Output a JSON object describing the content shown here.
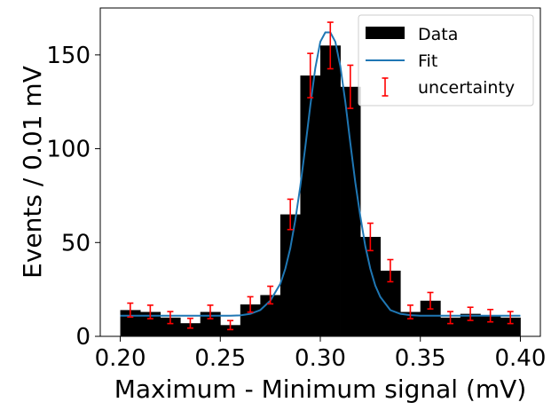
{
  "chart_data": {
    "type": "bar",
    "xlabel": "Maximum - Minimum signal (mV)",
    "ylabel": "Events / 0.01 mV",
    "xlim": [
      0.19,
      0.41
    ],
    "ylim": [
      0,
      175
    ],
    "x_ticks": [
      "0.20",
      "0.25",
      "0.30",
      "0.35",
      "0.40"
    ],
    "x_tick_values": [
      0.2,
      0.25,
      0.3,
      0.35,
      0.4
    ],
    "y_ticks": [
      "0",
      "50",
      "100",
      "150"
    ],
    "y_tick_values": [
      0,
      50,
      100,
      150
    ],
    "bin_width": 0.01,
    "bin_centers": [
      0.205,
      0.215,
      0.225,
      0.235,
      0.245,
      0.255,
      0.265,
      0.275,
      0.285,
      0.295,
      0.305,
      0.315,
      0.325,
      0.335,
      0.345,
      0.355,
      0.365,
      0.375,
      0.385,
      0.395
    ],
    "counts": [
      14,
      13,
      10,
      7,
      13,
      6,
      17,
      22,
      65,
      139,
      155,
      133,
      53,
      35,
      13,
      19,
      10,
      12,
      11,
      10
    ],
    "uncertainty": [
      3.7,
      3.6,
      3.2,
      2.6,
      3.6,
      2.4,
      4.1,
      4.7,
      8.1,
      11.8,
      12.4,
      11.5,
      7.3,
      5.9,
      3.6,
      4.4,
      3.2,
      3.5,
      3.3,
      3.2
    ],
    "fit": {
      "x": [
        0.2,
        0.205,
        0.21,
        0.215,
        0.22,
        0.225,
        0.23,
        0.235,
        0.24,
        0.245,
        0.25,
        0.255,
        0.26,
        0.265,
        0.27,
        0.275,
        0.28,
        0.2825,
        0.285,
        0.2875,
        0.29,
        0.2925,
        0.295,
        0.2975,
        0.3,
        0.3025,
        0.305,
        0.3075,
        0.31,
        0.3125,
        0.315,
        0.3175,
        0.32,
        0.3225,
        0.325,
        0.3275,
        0.33,
        0.335,
        0.34,
        0.345,
        0.35,
        0.355,
        0.36,
        0.365,
        0.37,
        0.375,
        0.38,
        0.385,
        0.39,
        0.395,
        0.4
      ],
      "y": [
        11,
        11,
        11,
        11,
        11,
        11,
        11,
        11,
        11,
        11,
        11,
        11,
        11.2,
        12,
        14,
        19,
        28,
        36,
        47,
        62,
        80,
        101,
        123,
        143,
        157,
        162,
        162,
        157,
        144,
        125,
        103,
        82,
        64,
        48,
        36,
        27,
        21,
        14,
        12,
        11.3,
        11,
        11,
        11,
        11,
        11,
        11,
        11,
        11,
        11,
        11,
        11
      ]
    },
    "colors": {
      "data": "#000000",
      "fit": "#1f77b4",
      "uncertainty": "#ff0000"
    },
    "legend": {
      "placement": "upper-right",
      "entries": [
        {
          "label": "Data",
          "kind": "patch"
        },
        {
          "label": "Fit",
          "kind": "line"
        },
        {
          "label": "uncertainty",
          "kind": "errorbar"
        }
      ]
    }
  }
}
